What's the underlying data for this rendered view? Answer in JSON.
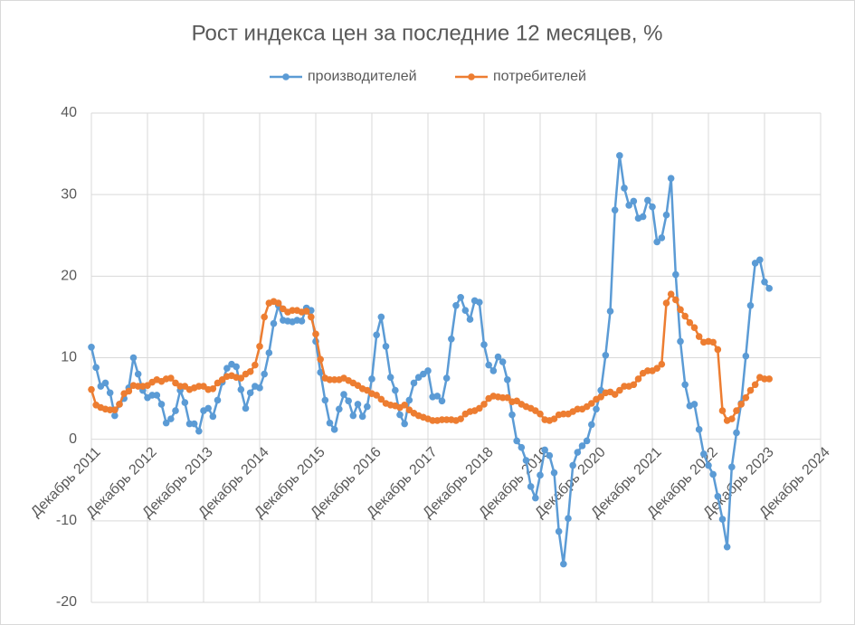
{
  "chart_data": {
    "type": "line",
    "title": "Рост индекса цен за последние 12 месяцев, %",
    "x": [
      "2011-12",
      "2012-01",
      "2012-02",
      "2012-03",
      "2012-04",
      "2012-05",
      "2012-06",
      "2012-07",
      "2012-08",
      "2012-09",
      "2012-10",
      "2012-11",
      "2012-12",
      "2013-01",
      "2013-02",
      "2013-03",
      "2013-04",
      "2013-05",
      "2013-06",
      "2013-07",
      "2013-08",
      "2013-09",
      "2013-10",
      "2013-11",
      "2013-12",
      "2014-01",
      "2014-02",
      "2014-03",
      "2014-04",
      "2014-05",
      "2014-06",
      "2014-07",
      "2014-08",
      "2014-09",
      "2014-10",
      "2014-11",
      "2014-12",
      "2015-01",
      "2015-02",
      "2015-03",
      "2015-04",
      "2015-05",
      "2015-06",
      "2015-07",
      "2015-08",
      "2015-09",
      "2015-10",
      "2015-11",
      "2015-12",
      "2016-01",
      "2016-02",
      "2016-03",
      "2016-04",
      "2016-05",
      "2016-06",
      "2016-07",
      "2016-08",
      "2016-09",
      "2016-10",
      "2016-11",
      "2016-12",
      "2017-01",
      "2017-02",
      "2017-03",
      "2017-04",
      "2017-05",
      "2017-06",
      "2017-07",
      "2017-08",
      "2017-09",
      "2017-10",
      "2017-11",
      "2017-12",
      "2018-01",
      "2018-02",
      "2018-03",
      "2018-04",
      "2018-05",
      "2018-06",
      "2018-07",
      "2018-08",
      "2018-09",
      "2018-10",
      "2018-11",
      "2018-12",
      "2019-01",
      "2019-02",
      "2019-03",
      "2019-04",
      "2019-05",
      "2019-06",
      "2019-07",
      "2019-08",
      "2019-09",
      "2019-10",
      "2019-11",
      "2019-12",
      "2020-01",
      "2020-02",
      "2020-03",
      "2020-04",
      "2020-05",
      "2020-06",
      "2020-07",
      "2020-08",
      "2020-09",
      "2020-10",
      "2020-11",
      "2020-12",
      "2021-01",
      "2021-02",
      "2021-03",
      "2021-04",
      "2021-05",
      "2021-06",
      "2021-07",
      "2021-08",
      "2021-09",
      "2021-10",
      "2021-11",
      "2021-12",
      "2022-01",
      "2022-02",
      "2022-03",
      "2022-04",
      "2022-05",
      "2022-06",
      "2022-07",
      "2022-08",
      "2022-09",
      "2022-10",
      "2022-11",
      "2022-12",
      "2023-01",
      "2023-02",
      "2023-03",
      "2023-04",
      "2023-05",
      "2023-06",
      "2023-07",
      "2023-08",
      "2023-09",
      "2023-10",
      "2023-11",
      "2023-12",
      "2024-01"
    ],
    "series": [
      {
        "name": "производителей",
        "color": "#5b9bd5",
        "values": [
          11.3,
          8.8,
          6.5,
          6.9,
          5.7,
          2.9,
          4.3,
          5.0,
          6.3,
          10.0,
          8.0,
          6.0,
          5.1,
          5.4,
          5.4,
          4.3,
          2.0,
          2.5,
          3.5,
          6.0,
          4.5,
          1.9,
          1.9,
          1.0,
          3.5,
          3.8,
          2.8,
          4.8,
          7.0,
          8.7,
          9.2,
          8.9,
          6.1,
          3.8,
          5.7,
          6.5,
          6.3,
          8.0,
          10.6,
          14.2,
          16.4,
          14.6,
          14.5,
          14.4,
          14.6,
          14.5,
          16.1,
          15.8,
          12.0,
          8.2,
          4.8,
          2.0,
          1.2,
          3.7,
          5.5,
          4.7,
          2.9,
          4.3,
          2.8,
          4.0,
          7.4,
          12.8,
          15.0,
          11.4,
          7.6,
          6.0,
          3.0,
          1.9,
          4.8,
          6.9,
          7.6,
          8.0,
          8.4,
          5.2,
          5.3,
          4.7,
          7.5,
          12.3,
          16.4,
          17.4,
          15.8,
          14.7,
          17.0,
          16.8,
          11.6,
          9.1,
          8.4,
          10.1,
          9.5,
          7.3,
          3.0,
          -0.2,
          -1.0,
          -2.6,
          -5.8,
          -7.2,
          -4.4,
          -1.3,
          -2.0,
          -4.1,
          -11.3,
          -15.3,
          -9.7,
          -3.2,
          -1.6,
          -0.8,
          -0.2,
          1.8,
          3.7,
          6.0,
          10.3,
          15.7,
          28.1,
          34.8,
          30.8,
          28.7,
          29.2,
          27.1,
          27.3,
          29.3,
          28.5,
          24.2,
          24.7,
          27.5,
          32.0,
          20.2,
          12.0,
          6.7,
          4.1,
          4.3,
          1.2,
          -1.8,
          -3.2,
          -4.3,
          -7.0,
          -9.8,
          -13.2,
          -3.4,
          0.8,
          4.4,
          10.2,
          16.4,
          21.6,
          22.0,
          19.3,
          18.5
        ]
      },
      {
        "name": "потребителей",
        "color": "#ed7d31",
        "values": [
          6.1,
          4.2,
          3.9,
          3.7,
          3.6,
          3.6,
          4.3,
          5.6,
          5.9,
          6.6,
          6.5,
          6.5,
          6.6,
          7.0,
          7.3,
          7.1,
          7.4,
          7.5,
          6.9,
          6.5,
          6.5,
          6.1,
          6.3,
          6.5,
          6.5,
          6.1,
          6.2,
          6.9,
          7.3,
          7.7,
          7.8,
          7.6,
          7.5,
          8.0,
          8.3,
          9.1,
          11.4,
          15.0,
          16.7,
          16.9,
          16.7,
          16.0,
          15.6,
          15.8,
          15.8,
          15.6,
          15.7,
          15.0,
          12.9,
          9.8,
          7.5,
          7.3,
          7.3,
          7.3,
          7.5,
          7.2,
          6.9,
          6.6,
          6.2,
          6.0,
          5.6,
          5.4,
          4.9,
          4.4,
          4.2,
          4.1,
          3.9,
          4.2,
          3.6,
          3.2,
          2.9,
          2.7,
          2.5,
          2.3,
          2.3,
          2.4,
          2.4,
          2.4,
          2.3,
          2.5,
          3.1,
          3.4,
          3.5,
          3.8,
          4.3,
          5.0,
          5.3,
          5.2,
          5.1,
          5.1,
          4.6,
          4.7,
          4.3,
          4.0,
          3.8,
          3.5,
          3.1,
          2.4,
          2.3,
          2.5,
          3.0,
          3.1,
          3.1,
          3.4,
          3.7,
          3.7,
          4.0,
          4.4,
          4.9,
          5.2,
          5.7,
          5.8,
          5.5,
          6.0,
          6.5,
          6.5,
          6.7,
          7.4,
          8.1,
          8.4,
          8.4,
          8.7,
          9.2,
          16.7,
          17.8,
          17.1,
          15.9,
          15.1,
          14.3,
          13.7,
          12.6,
          11.9,
          12.0,
          11.9,
          11.0,
          3.5,
          2.3,
          2.5,
          3.5,
          4.3,
          5.1,
          6.0,
          6.7,
          7.6,
          7.4,
          7.4
        ]
      }
    ],
    "xlim": [
      "2011-12",
      "2024-12"
    ],
    "xticks": [
      {
        "value": "2011-12",
        "label": "Декабрь 2011"
      },
      {
        "value": "2012-12",
        "label": "Декабрь 2012"
      },
      {
        "value": "2013-12",
        "label": "Декабрь 2013"
      },
      {
        "value": "2014-12",
        "label": "Декабрь 2014"
      },
      {
        "value": "2015-12",
        "label": "Декабрь 2015"
      },
      {
        "value": "2016-12",
        "label": "Декабрь 2016"
      },
      {
        "value": "2017-12",
        "label": "Декабрь 2017"
      },
      {
        "value": "2018-12",
        "label": "Декабрь 2018"
      },
      {
        "value": "2019-12",
        "label": "Декабрь 2019"
      },
      {
        "value": "2020-12",
        "label": "Декабрь 2020"
      },
      {
        "value": "2021-12",
        "label": "Декабрь 2021"
      },
      {
        "value": "2022-12",
        "label": "Декабрь 2022"
      },
      {
        "value": "2023-12",
        "label": "Декабрь 2023"
      },
      {
        "value": "2024-12",
        "label": "Декабрь 2024"
      }
    ],
    "ylim": [
      -20,
      40
    ],
    "yticks": [
      -20,
      -10,
      0,
      10,
      20,
      30,
      40
    ],
    "grid": true,
    "legend": "top"
  }
}
